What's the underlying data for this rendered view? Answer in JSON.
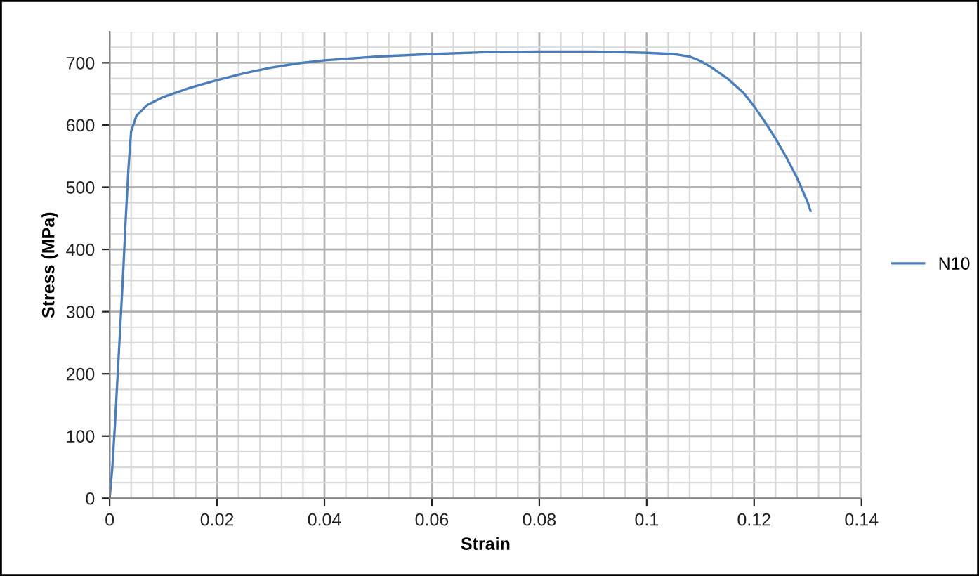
{
  "chart_data": {
    "type": "line",
    "xlabel": "Strain",
    "ylabel": "Stress (MPa)",
    "xlim": [
      0,
      0.14
    ],
    "xticks": [
      0,
      0.02,
      0.04,
      0.06,
      0.08,
      0.1,
      0.12,
      0.14
    ],
    "ylim": [
      0,
      750
    ],
    "yticks": [
      0,
      100,
      200,
      300,
      400,
      500,
      600,
      700
    ],
    "grid": true,
    "legend": "right",
    "marker": "none",
    "line_style": "solid",
    "series": [
      {
        "name": "N10",
        "color": "#4a7ebb",
        "x": [
          0,
          0.0005,
          0.001,
          0.0015,
          0.002,
          0.0025,
          0.003,
          0.0035,
          0.004,
          0.005,
          0.007,
          0.01,
          0.015,
          0.02,
          0.025,
          0.03,
          0.035,
          0.04,
          0.05,
          0.06,
          0.07,
          0.08,
          0.09,
          0.1,
          0.105,
          0.108,
          0.11,
          0.112,
          0.115,
          0.118,
          0.12,
          0.122,
          0.124,
          0.126,
          0.128,
          0.13,
          0.1305
        ],
        "values": [
          0,
          50,
          120,
          200,
          280,
          360,
          450,
          530,
          590,
          615,
          632,
          645,
          660,
          672,
          683,
          692,
          699,
          704,
          710,
          714,
          717,
          718,
          718,
          716,
          714,
          710,
          703,
          693,
          675,
          652,
          630,
          605,
          578,
          548,
          515,
          475,
          462
        ]
      }
    ]
  }
}
